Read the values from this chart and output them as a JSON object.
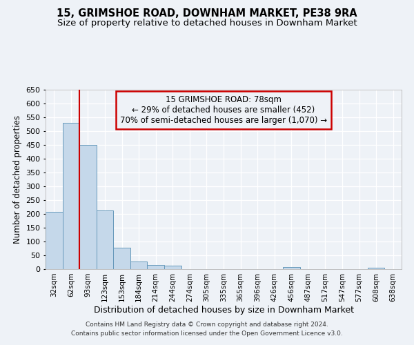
{
  "title1": "15, GRIMSHOE ROAD, DOWNHAM MARKET, PE38 9RA",
  "title2": "Size of property relative to detached houses in Downham Market",
  "xlabel": "Distribution of detached houses by size in Downham Market",
  "ylabel": "Number of detached properties",
  "footer1": "Contains HM Land Registry data © Crown copyright and database right 2024.",
  "footer2": "Contains public sector information licensed under the Open Government Licence v3.0.",
  "annotation_line1": "15 GRIMSHOE ROAD: 78sqm",
  "annotation_line2": "← 29% of detached houses are smaller (452)",
  "annotation_line3": "70% of semi-detached houses are larger (1,070) →",
  "bar_labels": [
    "32sqm",
    "62sqm",
    "93sqm",
    "123sqm",
    "153sqm",
    "184sqm",
    "214sqm",
    "244sqm",
    "274sqm",
    "305sqm",
    "335sqm",
    "365sqm",
    "396sqm",
    "426sqm",
    "456sqm",
    "487sqm",
    "517sqm",
    "547sqm",
    "577sqm",
    "608sqm",
    "638sqm"
  ],
  "bar_values": [
    207,
    530,
    450,
    213,
    78,
    27,
    15,
    12,
    0,
    0,
    0,
    0,
    0,
    0,
    7,
    0,
    0,
    0,
    0,
    5,
    0
  ],
  "bar_color": "#c5d8ea",
  "bar_edge_color": "#6699bb",
  "background_color": "#eef2f7",
  "grid_color": "#ffffff",
  "vline_x": 1.5,
  "vline_color": "#cc0000",
  "ylim": [
    0,
    650
  ],
  "yticks": [
    0,
    50,
    100,
    150,
    200,
    250,
    300,
    350,
    400,
    450,
    500,
    550,
    600,
    650
  ],
  "annotation_box_color": "#cc0000",
  "title1_fontsize": 10.5,
  "title2_fontsize": 9.5,
  "xlabel_fontsize": 9,
  "ylabel_fontsize": 8.5,
  "tick_fontsize": 8,
  "xtick_fontsize": 7.5,
  "footer_fontsize": 6.5,
  "annot_fontsize": 8.5
}
